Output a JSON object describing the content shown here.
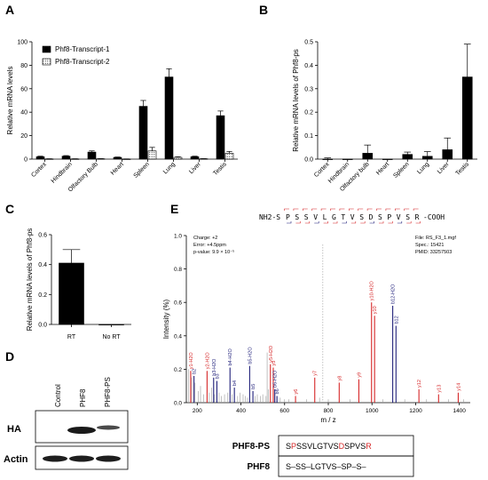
{
  "panel_letters": {
    "A": "A",
    "B": "B",
    "C": "C",
    "D": "D",
    "E": "E"
  },
  "colors": {
    "black": "#000000",
    "red": "#d62728",
    "blue": "#1f1f7a",
    "gray": "#9a9a9a"
  },
  "chart_data": [
    {
      "panel": "A",
      "type": "bar",
      "categories": [
        "Cortex",
        "Hindbrain",
        "Olfactory Bulb",
        "Heart",
        "Spleen",
        "Lung",
        "Liver",
        "Testis"
      ],
      "series": [
        {
          "name": "Phf8-Transcript-1",
          "values": [
            2,
            2.5,
            6,
            1.5,
            45,
            70,
            2,
            37
          ],
          "errors": [
            0.5,
            0.5,
            1,
            0.3,
            5,
            7,
            0.5,
            4
          ]
        },
        {
          "name": "Phf8-Transcript-2",
          "values": [
            0.2,
            0.2,
            0.3,
            0.1,
            7,
            1.5,
            0.3,
            5
          ],
          "errors": [
            0.1,
            0.1,
            0.1,
            0.1,
            3,
            0.5,
            0.1,
            1.5
          ]
        }
      ],
      "ylabel": "Relative mRNA levels",
      "ylim": [
        0,
        100
      ],
      "yticks": [
        "0",
        "20",
        "40",
        "60",
        "80",
        "100"
      ],
      "legend": "top-left"
    },
    {
      "panel": "B",
      "type": "bar",
      "categories": [
        "Cortex",
        "Hindbrain",
        "Olfactory bulb",
        "Heart",
        "Spleen",
        "Lung",
        "Liver",
        "Testis"
      ],
      "values": [
        0.0,
        0.0,
        0.025,
        0.0,
        0.02,
        0.012,
        0.04,
        0.35
      ],
      "errors": [
        0.005,
        0.0,
        0.035,
        0.0,
        0.01,
        0.02,
        0.05,
        0.14
      ],
      "ylabel": "Relative mRNA levels of Phf8-ps",
      "ylim": [
        0,
        0.5
      ],
      "yticks": [
        "0.0",
        "0.1",
        "0.2",
        "0.3",
        "0.4",
        "0.5"
      ]
    },
    {
      "panel": "C",
      "type": "bar",
      "categories": [
        "RT",
        "No RT"
      ],
      "values": [
        0.41,
        0.0
      ],
      "errors": [
        0.09,
        0.0
      ],
      "ylabel": "Relative mRNA levels of Phf8-ps",
      "ylim": [
        0,
        0.6
      ],
      "yticks": [
        "0.0",
        "0.2",
        "0.4",
        "0.6"
      ]
    },
    {
      "panel": "E",
      "type": "bar",
      "xlabel": "m / z",
      "ylabel": "Intensity (%)",
      "xlim": [
        150,
        1450
      ],
      "ylim": [
        0,
        1.0
      ],
      "xticks": [
        "200",
        "400",
        "600",
        "800",
        "1000",
        "1200",
        "1400"
      ],
      "yticks": [
        "0.0",
        "0.2",
        "0.4",
        "0.6",
        "0.8",
        "1.0"
      ],
      "info_left": [
        "Charge: +2",
        "Error: +4.5ppm",
        "p-value: 9.9 × 10⁻⁵"
      ],
      "info_right": [
        "File: RS_F3_1.mgf",
        "Spec.: 15421",
        "PMID: 33257503"
      ],
      "peaks": [
        {
          "label": "y1-H2O",
          "mz": 170,
          "i": 0.19,
          "color": "red"
        },
        {
          "label": "b2",
          "mz": 185,
          "i": 0.16,
          "color": "blue"
        },
        {
          "label": "y2-H2O",
          "mz": 245,
          "i": 0.19,
          "color": "red"
        },
        {
          "label": "b3-H2O",
          "mz": 275,
          "i": 0.15,
          "color": "blue"
        },
        {
          "label": "b3",
          "mz": 290,
          "i": 0.13,
          "color": "blue"
        },
        {
          "label": "b4-H2O",
          "mz": 350,
          "i": 0.21,
          "color": "blue"
        },
        {
          "label": "b4",
          "mz": 370,
          "i": 0.09,
          "color": "blue"
        },
        {
          "label": "b5-H2O",
          "mz": 440,
          "i": 0.22,
          "color": "blue"
        },
        {
          "label": "b5",
          "mz": 455,
          "i": 0.07,
          "color": "blue"
        },
        {
          "label": "y5-H2O",
          "mz": 535,
          "i": 0.23,
          "color": "red"
        },
        {
          "label": "y5",
          "mz": 548,
          "i": 0.21,
          "color": "red"
        },
        {
          "label": "b6-H2O",
          "mz": 555,
          "i": 0.08,
          "color": "blue"
        },
        {
          "label": "b6",
          "mz": 565,
          "i": 0.04,
          "color": "blue"
        },
        {
          "label": "y6",
          "mz": 650,
          "i": 0.04,
          "color": "red"
        },
        {
          "label": "y7",
          "mz": 738,
          "i": 0.15,
          "color": "red"
        },
        {
          "label": "y8",
          "mz": 850,
          "i": 0.12,
          "color": "red"
        },
        {
          "label": "y9",
          "mz": 940,
          "i": 0.14,
          "color": "red"
        },
        {
          "label": "y10-H2O",
          "mz": 998,
          "i": 0.6,
          "color": "red"
        },
        {
          "label": "y10",
          "mz": 1012,
          "i": 0.52,
          "color": "red"
        },
        {
          "label": "b12-H2O",
          "mz": 1095,
          "i": 0.58,
          "color": "blue"
        },
        {
          "label": "b12",
          "mz": 1110,
          "i": 0.46,
          "color": "blue"
        },
        {
          "label": "y12",
          "mz": 1215,
          "i": 0.08,
          "color": "red"
        },
        {
          "label": "y13",
          "mz": 1305,
          "i": 0.05,
          "color": "red"
        },
        {
          "label": "y14",
          "mz": 1395,
          "i": 0.06,
          "color": "red"
        }
      ],
      "noise_peaks": [
        [
          160,
          0.2
        ],
        [
          175,
          0.15
        ],
        [
          190,
          0.12
        ],
        [
          205,
          0.07
        ],
        [
          215,
          0.1
        ],
        [
          230,
          0.05
        ],
        [
          255,
          0.06
        ],
        [
          265,
          0.09
        ],
        [
          280,
          0.05
        ],
        [
          300,
          0.06
        ],
        [
          310,
          0.04
        ],
        [
          325,
          0.05
        ],
        [
          340,
          0.06
        ],
        [
          360,
          0.05
        ],
        [
          385,
          0.04
        ],
        [
          395,
          0.06
        ],
        [
          410,
          0.05
        ],
        [
          420,
          0.04
        ],
        [
          430,
          0.03
        ],
        [
          465,
          0.04
        ],
        [
          475,
          0.05
        ],
        [
          490,
          0.04
        ],
        [
          500,
          0.05
        ],
        [
          515,
          0.04
        ],
        [
          520,
          0.3
        ],
        [
          525,
          0.08
        ],
        [
          580,
          0.03
        ],
        [
          600,
          0.02
        ],
        [
          620,
          0.02
        ],
        [
          700,
          0.02
        ],
        [
          760,
          0.03
        ],
        [
          800,
          0.02
        ],
        [
          900,
          0.02
        ],
        [
          1050,
          0.02
        ],
        [
          1150,
          0.02
        ],
        [
          1250,
          0.02
        ],
        [
          1350,
          0.02
        ],
        [
          1420,
          0.02
        ]
      ],
      "dotted_line_mz": 775
    }
  ],
  "peptide": {
    "prefix": "NH2-S",
    "residues": [
      "P",
      "S",
      "S",
      "V",
      "L",
      "G",
      "T",
      "V",
      "S",
      "D",
      "S",
      "P",
      "V",
      "S",
      "R"
    ],
    "suffix": "-COOH"
  },
  "western": {
    "lanes": [
      "Control",
      "PHF8",
      "PHF8-PS"
    ],
    "rows": [
      "HA",
      "Actin"
    ]
  },
  "alignment": {
    "rows": [
      {
        "name": "PHF8-PS",
        "seq": [
          "S",
          "P",
          "S",
          "S",
          "V",
          "L",
          "G",
          "T",
          "V",
          "S",
          "D",
          "S",
          "P",
          "V",
          "S",
          "R"
        ],
        "red": [
          1,
          10,
          15
        ]
      },
      {
        "name": "PHF8",
        "seq_text": "S–SS–LGTVS–SP–S–"
      }
    ]
  }
}
